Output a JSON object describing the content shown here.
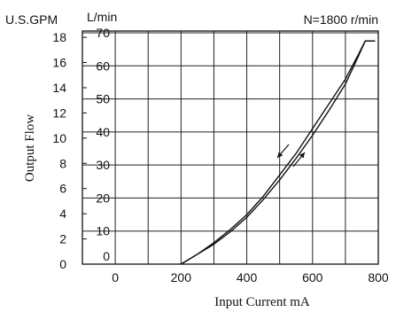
{
  "chart_data": {
    "type": "line",
    "title": "",
    "annotation": "N=1800 r/min",
    "xlabel": "Input Current  mA",
    "ylabel": "Output Flow",
    "y_units_left": "U.S.GPM",
    "y_units_right": "L/min",
    "xlim": [
      -100,
      800
    ],
    "ylim_lmin": [
      0,
      70
    ],
    "ylim_gpm": [
      0,
      18.5
    ],
    "x_ticks": [
      0,
      200,
      400,
      600,
      800
    ],
    "y_ticks_lmin": [
      0,
      10,
      20,
      30,
      40,
      50,
      60,
      70
    ],
    "y_ticks_gpm": [
      0,
      2,
      4,
      6,
      8,
      10,
      12,
      14,
      16,
      18
    ],
    "grid": true,
    "legend": "none",
    "series": [
      {
        "x": [
          200,
          250,
          300,
          350,
          400,
          450,
          500,
          550,
          600,
          650,
          700,
          740,
          760,
          790
        ],
        "y": [
          0,
          3,
          6.5,
          10.5,
          15,
          20.5,
          27,
          33.5,
          41,
          48.5,
          56,
          63.5,
          67.5,
          67.5
        ]
      },
      {
        "x": [
          200,
          250,
          300,
          350,
          400,
          450,
          500,
          550,
          600,
          650,
          700,
          740,
          760,
          790
        ],
        "y": [
          0,
          3,
          6,
          9.8,
          14.2,
          19.5,
          25.5,
          32,
          39,
          46.5,
          54.5,
          63,
          67.5,
          67.5
        ]
      }
    ]
  }
}
